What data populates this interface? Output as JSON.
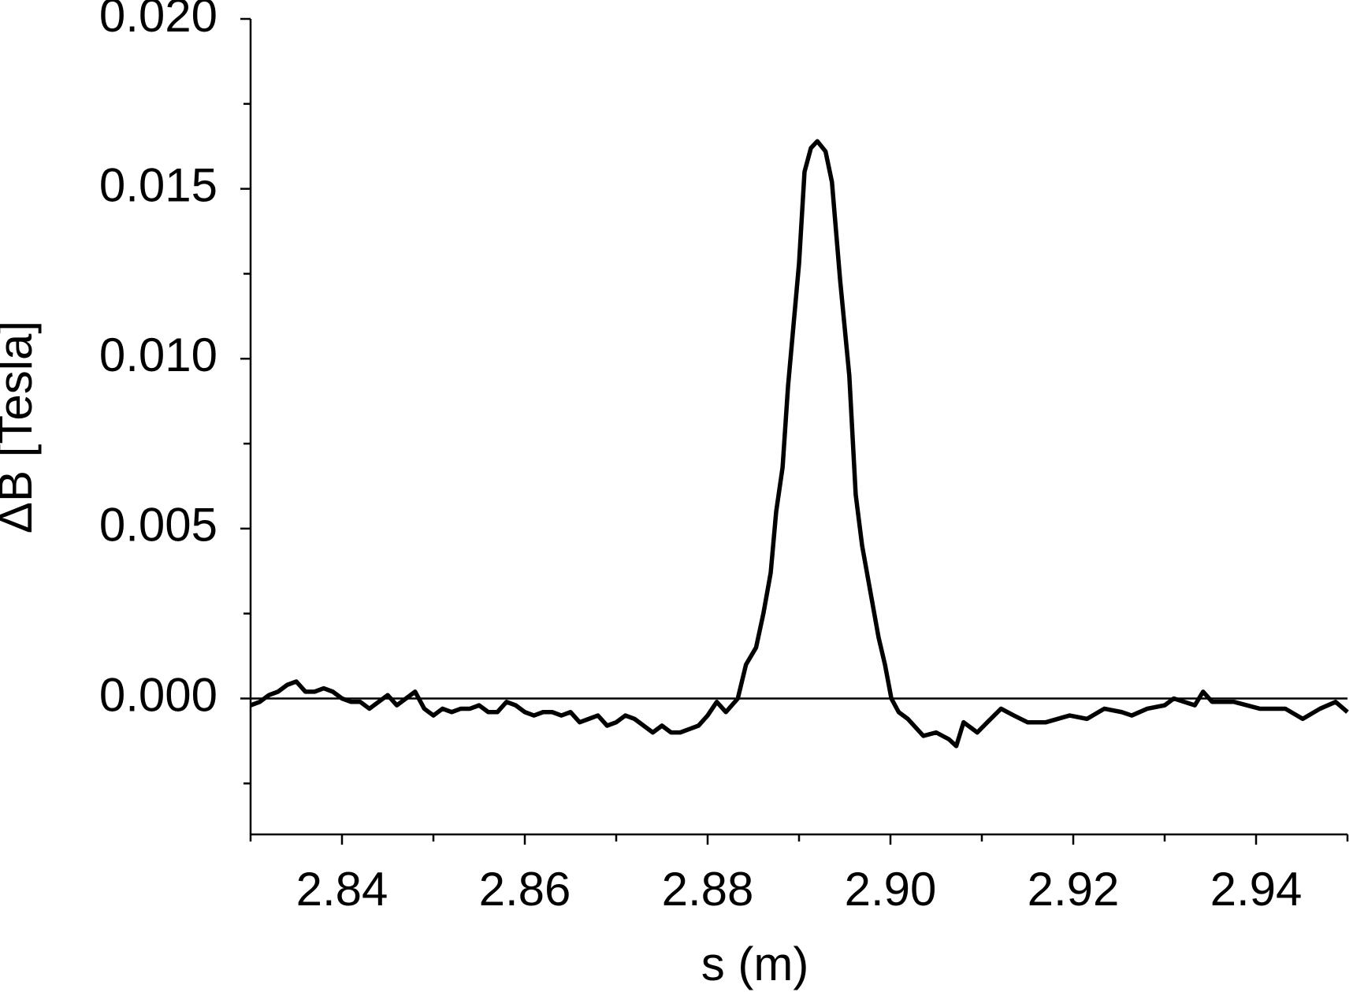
{
  "chart_data": {
    "type": "line",
    "x_label": "s (m)",
    "y_label": "ΔB [Tesla]",
    "xlim": [
      2.83,
      2.95
    ],
    "ylim": [
      -0.004,
      0.02
    ],
    "xticks": [
      2.84,
      2.86,
      2.88,
      {
        "value": 2.9,
        "label": "2.90"
      },
      2.92,
      2.94
    ],
    "yticks": [
      {
        "value": 0,
        "label": "0.000"
      },
      0.005,
      {
        "value": 0.01,
        "label": "0.010"
      },
      0.015,
      {
        "value": 0.02,
        "label": "0.020"
      }
    ],
    "x_minor_ticks": [
      2.83,
      2.85,
      2.87,
      2.89,
      2.91,
      2.93,
      2.95
    ],
    "y_minor_ticks": [
      -0.0025,
      0.0025,
      0.0075,
      0.0125,
      0.0175
    ],
    "zero_line": true,
    "series": [
      {
        "color": "#000000",
        "x": [
          2.83,
          2.831,
          2.832,
          2.833,
          2.834,
          2.835,
          2.836,
          2.837,
          2.838,
          2.839,
          2.84,
          2.841,
          2.842,
          2.843,
          2.844,
          2.845,
          2.846,
          2.847,
          2.848,
          2.849,
          2.85,
          2.851,
          2.852,
          2.853,
          2.854,
          2.855,
          2.856,
          2.857,
          2.858,
          2.859,
          2.86,
          2.861,
          2.862,
          2.863,
          2.864,
          2.865,
          2.866,
          2.867,
          2.868,
          2.869,
          2.87,
          2.871,
          2.872,
          2.873,
          2.874,
          2.875,
          2.876,
          2.877,
          2.878,
          2.879,
          2.88,
          2.881,
          2.882,
          2.8833,
          2.8842,
          2.8853,
          2.8861,
          2.8869,
          2.8875,
          2.8882,
          2.8888,
          2.8894,
          2.89,
          2.8906,
          2.8913,
          2.892,
          2.8929,
          2.8936,
          2.8945,
          2.8955,
          2.8962,
          2.8969,
          2.8979,
          2.8987,
          2.8994,
          2.9001,
          2.9009,
          2.9019,
          2.9036,
          2.905,
          2.9064,
          2.9072,
          2.908,
          2.9095,
          2.9106,
          2.9121,
          2.9135,
          2.915,
          2.917,
          2.9196,
          2.9215,
          2.9234,
          2.9253,
          2.9264,
          2.9281,
          2.93,
          2.931,
          2.9333,
          2.9342,
          2.9352,
          2.9376,
          2.9404,
          2.9432,
          2.9451,
          2.947,
          2.9487,
          2.95
        ],
        "values": [
          -0.0002,
          -0.0001,
          0.0001,
          0.0002,
          0.0004,
          0.0005,
          0.0002,
          0.0002,
          0.0003,
          0.0002,
          0.0,
          -0.0001,
          -0.0001,
          -0.0003,
          -0.0001,
          0.0001,
          -0.0002,
          0.0,
          0.0002,
          -0.0003,
          -0.0005,
          -0.0003,
          -0.0004,
          -0.0003,
          -0.0003,
          -0.0002,
          -0.0004,
          -0.0004,
          -0.0001,
          -0.0002,
          -0.0004,
          -0.0005,
          -0.0004,
          -0.0004,
          -0.0005,
          -0.0004,
          -0.0007,
          -0.0006,
          -0.0005,
          -0.0008,
          -0.0007,
          -0.0005,
          -0.0006,
          -0.0008,
          -0.001,
          -0.0008,
          -0.001,
          -0.001,
          -0.0009,
          -0.0008,
          -0.0005,
          -0.0001,
          -0.0004,
          0.0,
          0.001,
          0.0015,
          0.0025,
          0.0037,
          0.0055,
          0.0068,
          0.0092,
          0.011,
          0.0128,
          0.0155,
          0.0162,
          0.0164,
          0.0161,
          0.0152,
          0.0123,
          0.0095,
          0.006,
          0.0045,
          0.003,
          0.0018,
          0.001,
          0.0,
          -0.0004,
          -0.0006,
          -0.0011,
          -0.001,
          -0.0012,
          -0.0014,
          -0.0007,
          -0.001,
          -0.0007,
          -0.0003,
          -0.0005,
          -0.0007,
          -0.0007,
          -0.0005,
          -0.0006,
          -0.0003,
          -0.0004,
          -0.0005,
          -0.0003,
          -0.0002,
          0.0,
          -0.0002,
          0.0002,
          -0.0001,
          -0.0001,
          -0.0003,
          -0.0003,
          -0.0006,
          -0.0003,
          -0.0001,
          -0.0004
        ]
      }
    ]
  }
}
